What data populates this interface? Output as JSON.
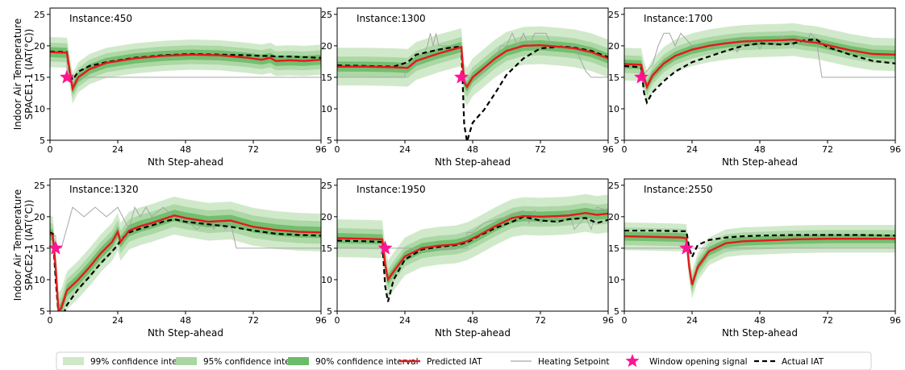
{
  "chart_data": {
    "type": "line",
    "shared": {
      "xlabel": "Nth Step-ahead",
      "xticks": [
        0,
        24,
        48,
        72,
        96
      ],
      "xlim": [
        0,
        96
      ],
      "yticks": [
        5,
        10,
        15,
        20,
        25
      ],
      "ylim": [
        5,
        26
      ],
      "row_ylabels": [
        [
          "Indoor Air Temperature",
          "SPACE1-1 (IAT(°C))"
        ],
        [
          "Indoor Air Temperature",
          "SPACE2-1 (IAT(°C))"
        ]
      ]
    },
    "legend": {
      "placement": "bottom-center",
      "entries": [
        {
          "label": "99% confidence interval",
          "kind": "patch",
          "color": "#cfe8c8"
        },
        {
          "label": "95% confidence interval",
          "kind": "patch",
          "color": "#a9d6a2"
        },
        {
          "label": "90% confidence interval",
          "kind": "patch",
          "color": "#6dbb69"
        },
        {
          "label": "Predicted IAT",
          "kind": "line",
          "color": "#e31a1c"
        },
        {
          "label": "Heating Setpoint",
          "kind": "line",
          "color": "#a6a6a6"
        },
        {
          "label": "Window opening signal",
          "kind": "star",
          "color": "#ff1493"
        },
        {
          "label": "Actual IAT",
          "kind": "dash",
          "color": "#000000"
        }
      ]
    },
    "panels": [
      {
        "title": "Instance:450",
        "x": [
          0,
          6,
          7,
          8,
          10,
          14,
          20,
          30,
          40,
          50,
          60,
          70,
          75,
          78,
          80,
          85,
          90,
          96
        ],
        "predicted": [
          19.0,
          18.9,
          16.0,
          13.2,
          15.0,
          16.3,
          17.3,
          18.0,
          18.4,
          18.6,
          18.5,
          18.1,
          17.8,
          18.1,
          17.6,
          17.7,
          17.6,
          17.8
        ],
        "actual": [
          19.1,
          19.0,
          15.6,
          14.6,
          15.9,
          16.8,
          17.4,
          18.1,
          18.5,
          18.7,
          18.6,
          18.5,
          18.4,
          18.4,
          18.3,
          18.3,
          18.2,
          18.1
        ],
        "setpoint": [
          19.0,
          6.0,
          15.0,
          96.0,
          15.0
        ],
        "setpoint_x": [
          0,
          6,
          6,
          96
        ],
        "setpoint_y": [
          19.0,
          19.0,
          15.0,
          15.0
        ],
        "ci_widths": [
          2.4,
          1.5,
          0.8
        ],
        "star": [
          6,
          15
        ]
      },
      {
        "title": "Instance:1300",
        "x": [
          0,
          10,
          20,
          25,
          28,
          32,
          36,
          40,
          44,
          45,
          46,
          48,
          52,
          56,
          60,
          66,
          72,
          80,
          84,
          90,
          96
        ],
        "predicted": [
          16.7,
          16.7,
          16.6,
          16.5,
          17.6,
          18.2,
          18.8,
          19.3,
          19.8,
          14.2,
          13.5,
          15.0,
          16.5,
          18.0,
          19.2,
          20.0,
          20.1,
          19.8,
          19.6,
          19.0,
          18.0
        ],
        "actual": [
          16.9,
          16.8,
          16.7,
          17.4,
          18.6,
          19.0,
          19.4,
          19.7,
          19.9,
          7.5,
          4.8,
          7.8,
          9.8,
          12.5,
          15.4,
          18.0,
          19.6,
          19.9,
          19.7,
          19.2,
          18.2
        ],
        "setpoint_x": [
          0,
          24,
          24,
          28,
          30,
          32,
          33,
          34,
          35,
          36,
          37,
          38,
          40,
          44,
          45,
          46,
          50,
          52,
          56,
          58,
          60,
          62,
          64,
          66,
          68,
          70,
          74,
          76,
          80,
          84,
          86,
          88,
          90,
          96
        ],
        "setpoint_y": [
          15.0,
          15.0,
          17.0,
          17.0,
          18.0,
          20.0,
          22.0,
          20.0,
          22.0,
          20.0,
          20.0,
          20.0,
          20.0,
          20.0,
          15.0,
          15.0,
          15.0,
          16.0,
          18.0,
          20.0,
          20.0,
          22.0,
          20.0,
          22.0,
          20.0,
          22.0,
          22.0,
          20.0,
          20.0,
          20.0,
          18.0,
          16.0,
          15.0,
          15.0
        ],
        "ci_widths": [
          3.0,
          1.6,
          0.8
        ],
        "star": [
          44,
          15
        ]
      },
      {
        "title": "Instance:1700",
        "x": [
          0,
          6,
          7,
          8,
          10,
          14,
          18,
          24,
          30,
          36,
          42,
          48,
          56,
          60,
          64,
          68,
          72,
          80,
          88,
          96
        ],
        "predicted": [
          17.1,
          17.0,
          15.0,
          13.5,
          15.3,
          17.2,
          18.4,
          19.4,
          20.0,
          20.4,
          20.7,
          20.8,
          20.9,
          21.0,
          20.7,
          20.5,
          20.1,
          19.3,
          18.7,
          18.6
        ],
        "actual": [
          16.8,
          16.6,
          12.5,
          11.0,
          12.6,
          14.4,
          15.9,
          17.4,
          18.3,
          19.2,
          20.0,
          20.4,
          20.2,
          20.4,
          20.9,
          21.0,
          19.8,
          18.6,
          17.6,
          17.2
        ],
        "setpoint_x": [
          0,
          6,
          6,
          10,
          12,
          14,
          16,
          18,
          20,
          24,
          30,
          34,
          38,
          40,
          42,
          44,
          46,
          48,
          50,
          54,
          56,
          60,
          62,
          64,
          66,
          68,
          70,
          72,
          96
        ],
        "setpoint_y": [
          17.0,
          17.0,
          15.0,
          17.0,
          20.0,
          22.0,
          22.0,
          20.0,
          22.0,
          20.0,
          20.0,
          20.0,
          21.0,
          19.0,
          21.0,
          20.0,
          21.0,
          19.5,
          21.0,
          20.0,
          21.5,
          20.0,
          21.5,
          20.0,
          22.0,
          21.0,
          15.0,
          15.0,
          15.0
        ],
        "ci_widths": [
          2.6,
          1.4,
          0.7
        ],
        "star": [
          6,
          15
        ]
      },
      {
        "title": "Instance:1320",
        "x": [
          0,
          1,
          2,
          3,
          4,
          6,
          10,
          14,
          18,
          22,
          24,
          25,
          28,
          32,
          36,
          40,
          44,
          48,
          56,
          64,
          72,
          80,
          88,
          96
        ],
        "predicted": [
          17.3,
          17.0,
          12.0,
          5.0,
          5.5,
          8.3,
          10.0,
          12.0,
          14.2,
          16.0,
          17.6,
          16.0,
          17.8,
          18.5,
          19.0,
          19.6,
          20.2,
          19.8,
          19.2,
          19.4,
          18.4,
          17.9,
          17.6,
          17.5
        ],
        "actual": [
          17.5,
          17.3,
          10.0,
          4.5,
          3.6,
          6.0,
          8.5,
          10.5,
          12.6,
          14.5,
          15.5,
          16.3,
          17.5,
          18.1,
          18.6,
          19.2,
          19.6,
          19.2,
          18.8,
          18.4,
          17.8,
          17.3,
          17.1,
          17.0
        ],
        "setpoint_x": [
          0,
          2,
          2,
          4,
          8,
          12,
          16,
          20,
          24,
          28,
          30,
          32,
          34,
          36,
          40,
          44,
          48,
          52,
          56,
          58,
          60,
          62,
          64,
          66,
          96
        ],
        "setpoint_y": [
          17.0,
          17.0,
          15.0,
          15.0,
          21.5,
          20.0,
          21.5,
          20.0,
          21.5,
          18.0,
          21.5,
          20.0,
          21.5,
          20.0,
          21.5,
          20.0,
          19.5,
          18.0,
          19.5,
          18.0,
          19.5,
          18.0,
          19.0,
          15.0,
          15.0
        ],
        "ci_widths": [
          3.0,
          1.8,
          0.9
        ],
        "star": [
          2,
          15
        ]
      },
      {
        "title": "Instance:1950",
        "x": [
          0,
          10,
          16,
          17,
          18,
          20,
          24,
          30,
          36,
          42,
          46,
          50,
          56,
          62,
          66,
          72,
          78,
          82,
          88,
          92,
          96
        ],
        "predicted": [
          16.6,
          16.5,
          16.4,
          12.5,
          10.0,
          11.3,
          13.7,
          15.0,
          15.4,
          15.6,
          16.1,
          17.0,
          18.5,
          19.8,
          20.1,
          20.0,
          20.1,
          20.2,
          20.6,
          20.3,
          20.5
        ],
        "actual": [
          16.2,
          16.1,
          16.0,
          9.0,
          6.5,
          10.0,
          13.2,
          14.8,
          15.2,
          15.5,
          15.9,
          16.9,
          18.2,
          19.2,
          20.0,
          19.4,
          19.2,
          19.6,
          19.8,
          19.0,
          19.5
        ],
        "setpoint_x": [
          0,
          18,
          18,
          46,
          46,
          48,
          52,
          56,
          60,
          62,
          66,
          68,
          70,
          72,
          76,
          78,
          82,
          84,
          88,
          90,
          92,
          96
        ],
        "setpoint_y": [
          15.0,
          15.0,
          15.0,
          15.0,
          17.5,
          17.5,
          19.0,
          19.5,
          20.0,
          20.5,
          21.0,
          19.0,
          21.0,
          19.0,
          20.0,
          19.0,
          21.0,
          18.0,
          20.0,
          18.0,
          21.5,
          21.0
        ],
        "ci_widths": [
          3.0,
          1.6,
          0.8
        ],
        "star": [
          17,
          15
        ]
      },
      {
        "title": "Instance:2550",
        "x": [
          0,
          10,
          20,
          22,
          23,
          24,
          26,
          30,
          36,
          42,
          48,
          60,
          72,
          84,
          96
        ],
        "predicted": [
          16.9,
          16.8,
          16.7,
          16.6,
          12.0,
          9.2,
          12.0,
          14.5,
          15.8,
          16.1,
          16.2,
          16.4,
          16.5,
          16.5,
          16.5
        ],
        "actual": [
          17.8,
          17.8,
          17.7,
          17.7,
          15.0,
          13.6,
          15.5,
          16.3,
          16.7,
          16.9,
          17.0,
          17.1,
          17.1,
          17.1,
          17.0
        ],
        "setpoint_x": [
          0,
          96
        ],
        "setpoint_y": [
          15.0,
          15.0
        ],
        "ci_widths": [
          2.2,
          1.4,
          0.7
        ],
        "star": [
          22,
          15
        ]
      }
    ]
  }
}
